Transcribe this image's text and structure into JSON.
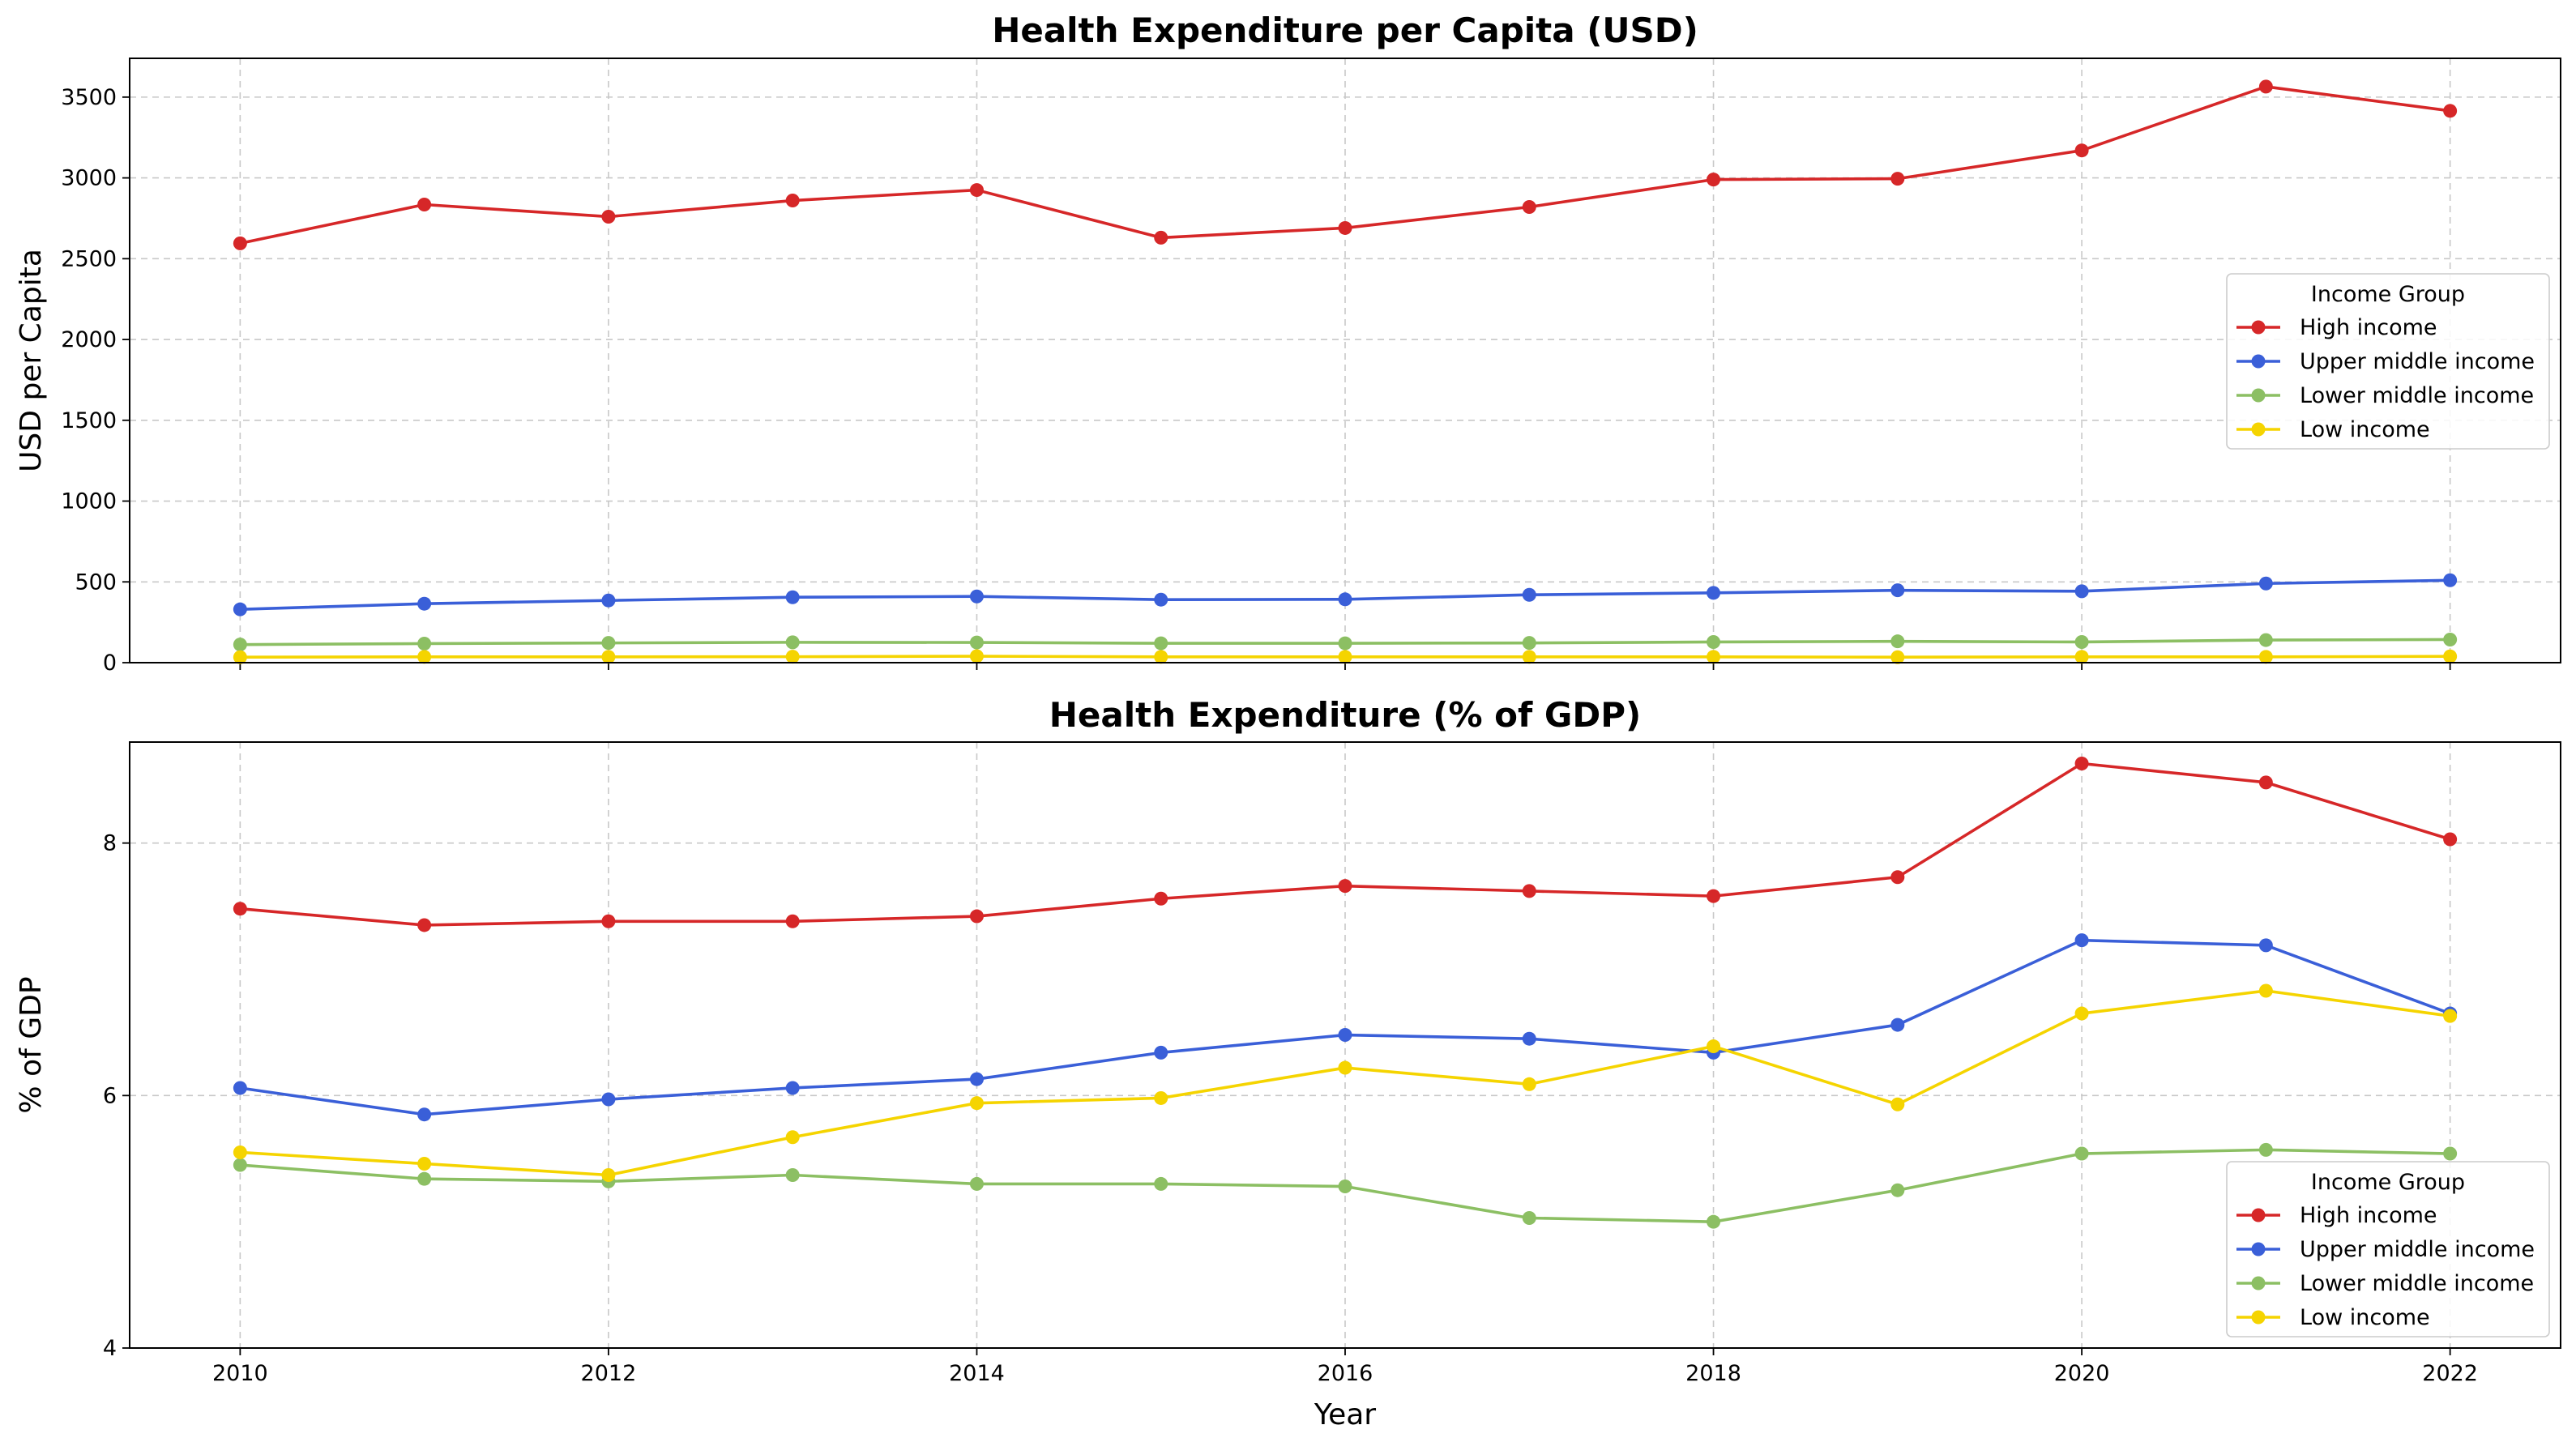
{
  "chart_data": [
    {
      "type": "line",
      "title": "Health Expenditure per Capita (USD)",
      "xlabel": "",
      "ylabel": "USD per Capita",
      "xlim": [
        2009.4,
        2022.6
      ],
      "ylim": [
        0,
        3740
      ],
      "xticks": [
        2010,
        2012,
        2014,
        2016,
        2018,
        2020,
        2022
      ],
      "yticks": [
        0,
        500,
        1000,
        1500,
        2000,
        2500,
        3000,
        3500
      ],
      "grid": true,
      "legend": {
        "title": "Income Group",
        "position": "center-right"
      },
      "x": [
        2010,
        2011,
        2012,
        2013,
        2014,
        2015,
        2016,
        2017,
        2018,
        2019,
        2020,
        2021,
        2022
      ],
      "series": [
        {
          "name": "High income",
          "color": "#d62728",
          "values": [
            2595,
            2835,
            2760,
            2860,
            2925,
            2630,
            2690,
            2820,
            2990,
            2995,
            3170,
            3565,
            3415
          ]
        },
        {
          "name": "Upper middle income",
          "color": "#3a5fd8",
          "values": [
            330,
            365,
            385,
            405,
            410,
            390,
            392,
            420,
            432,
            448,
            442,
            490,
            510
          ]
        },
        {
          "name": "Lower middle income",
          "color": "#8cbf63",
          "values": [
            112,
            118,
            122,
            126,
            125,
            120,
            120,
            122,
            128,
            132,
            128,
            140,
            143
          ]
        },
        {
          "name": "Low income",
          "color": "#f5d400",
          "values": [
            34,
            36,
            36,
            37,
            40,
            36,
            36,
            36,
            36,
            34,
            36,
            36,
            39
          ]
        }
      ]
    },
    {
      "type": "line",
      "title": "Health Expenditure (% of GDP)",
      "xlabel": "Year",
      "ylabel": "% of GDP",
      "xlim": [
        2009.4,
        2022.6
      ],
      "ylim": [
        4,
        8.8
      ],
      "xticks": [
        2010,
        2012,
        2014,
        2016,
        2018,
        2020,
        2022
      ],
      "yticks": [
        4,
        6,
        8
      ],
      "grid": true,
      "legend": {
        "title": "Income Group",
        "position": "lower-right"
      },
      "x": [
        2010,
        2011,
        2012,
        2013,
        2014,
        2015,
        2016,
        2017,
        2018,
        2019,
        2020,
        2021,
        2022
      ],
      "series": [
        {
          "name": "High income",
          "color": "#d62728",
          "values": [
            7.48,
            7.35,
            7.38,
            7.38,
            7.42,
            7.56,
            7.66,
            7.62,
            7.58,
            7.73,
            8.63,
            8.48,
            8.03
          ]
        },
        {
          "name": "Upper middle income",
          "color": "#3a5fd8",
          "values": [
            6.06,
            5.85,
            5.97,
            6.06,
            6.13,
            6.34,
            6.48,
            6.45,
            6.34,
            6.56,
            7.23,
            7.19,
            6.65
          ]
        },
        {
          "name": "Lower middle income",
          "color": "#8cbf63",
          "values": [
            5.45,
            5.34,
            5.32,
            5.37,
            5.3,
            5.3,
            5.28,
            5.03,
            5.0,
            5.25,
            5.54,
            5.57,
            5.54
          ]
        },
        {
          "name": "Low income",
          "color": "#f5d400",
          "values": [
            5.55,
            5.46,
            5.37,
            5.67,
            5.94,
            5.98,
            6.22,
            6.09,
            6.39,
            5.93,
            6.65,
            6.83,
            6.63
          ]
        }
      ]
    }
  ]
}
